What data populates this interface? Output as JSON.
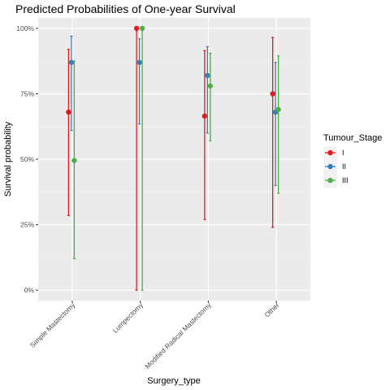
{
  "chart_data": {
    "type": "scatter",
    "subtype": "point-range (error bars)",
    "title": "Predicted Probabilities of One-year Survival",
    "xlabel": "Surgery_type",
    "ylabel": "Survival probability",
    "categories": [
      "Simple Mastectomy",
      "Lumpectomy",
      "Modified Radical Mastectomy",
      "Other"
    ],
    "y_ticks": [
      0,
      0.25,
      0.5,
      0.75,
      1.0
    ],
    "y_tick_labels": [
      "0%",
      "25%",
      "50%",
      "75%",
      "100%"
    ],
    "ylim": [
      -0.04,
      1.04
    ],
    "grid": true,
    "legend": {
      "title": "Tumour_Stage",
      "placement": "right"
    },
    "series": [
      {
        "name": "I",
        "color": "#E41A1C",
        "values": [
          0.68,
          1.0,
          0.665,
          0.75
        ],
        "lower": [
          0.285,
          0.0,
          0.27,
          0.24
        ],
        "upper": [
          0.92,
          1.0,
          0.915,
          0.965
        ]
      },
      {
        "name": "II",
        "color": "#377EB8",
        "values": [
          0.87,
          0.87,
          0.82,
          0.68
        ],
        "lower": [
          0.61,
          0.635,
          0.6,
          0.4
        ],
        "upper": [
          0.97,
          0.96,
          0.93,
          0.87
        ]
      },
      {
        "name": "III",
        "color": "#4DAF4A",
        "values": [
          0.495,
          1.0,
          0.78,
          0.69
        ],
        "lower": [
          0.12,
          0.0,
          0.57,
          0.37
        ],
        "upper": [
          0.875,
          1.0,
          0.905,
          0.895
        ]
      }
    ]
  }
}
